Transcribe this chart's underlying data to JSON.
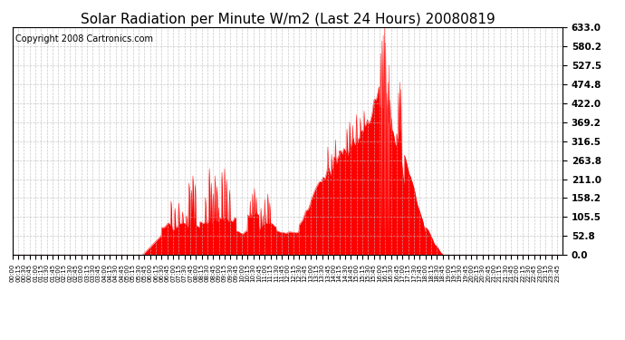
{
  "title": "Solar Radiation per Minute W/m2 (Last 24 Hours) 20080819",
  "copyright_text": "Copyright 2008 Cartronics.com",
  "y_tick_labels": [
    "0.0",
    "52.8",
    "105.5",
    "158.2",
    "211.0",
    "263.8",
    "316.5",
    "369.2",
    "422.0",
    "474.8",
    "527.5",
    "580.2",
    "633.0"
  ],
  "y_tick_values": [
    0.0,
    52.8,
    105.5,
    158.2,
    211.0,
    263.8,
    316.5,
    369.2,
    422.0,
    474.8,
    527.5,
    580.2,
    633.0
  ],
  "ylim": [
    0.0,
    633.0
  ],
  "fill_color": "#FF0000",
  "line_color": "#FF0000",
  "bg_color": "#FFFFFF",
  "plot_bg_color": "#FFFFFF",
  "grid_color": "#AAAAAA",
  "dashed_line_color": "#FF0000",
  "title_fontsize": 11,
  "copyright_fontsize": 7
}
